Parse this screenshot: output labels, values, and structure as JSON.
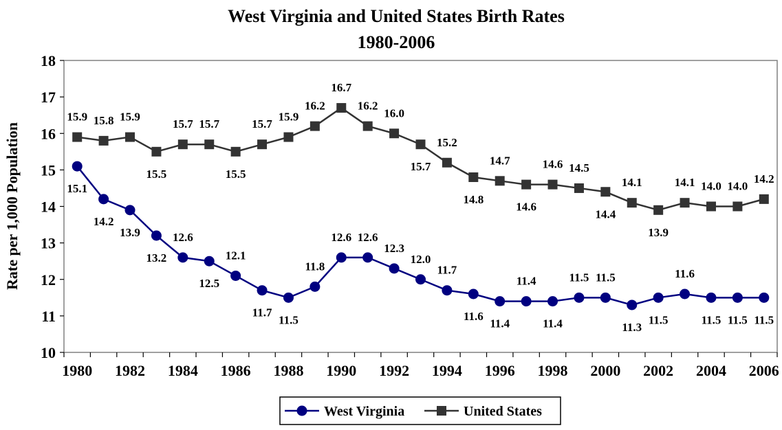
{
  "chart_data": {
    "type": "line",
    "title": "West Virginia and United States Birth Rates",
    "subtitle": "1980-2006",
    "xlabel": "",
    "ylabel": "Rate per 1,000 Population",
    "ylim": [
      10,
      18
    ],
    "yticks": [
      "10",
      "11",
      "12",
      "13",
      "14",
      "15",
      "16",
      "17",
      "18"
    ],
    "x": [
      1980,
      1981,
      1982,
      1983,
      1984,
      1985,
      1986,
      1987,
      1988,
      1989,
      1990,
      1991,
      1992,
      1993,
      1994,
      1995,
      1996,
      1997,
      1998,
      1999,
      2000,
      2001,
      2002,
      2003,
      2004,
      2005,
      2006
    ],
    "xtick_labels": [
      "1980",
      "1982",
      "1984",
      "1986",
      "1988",
      "1990",
      "1992",
      "1994",
      "1996",
      "1998",
      "2000",
      "2002",
      "2004",
      "2006"
    ],
    "grid": false,
    "legend_position": "bottom",
    "series": [
      {
        "name": "West Virginia",
        "color": "#000080",
        "marker": "circle",
        "values": [
          15.1,
          14.2,
          13.9,
          13.2,
          12.6,
          12.5,
          12.1,
          11.7,
          11.5,
          11.8,
          12.6,
          12.6,
          12.3,
          12.0,
          11.7,
          11.6,
          11.4,
          11.4,
          11.4,
          11.5,
          11.5,
          11.3,
          11.5,
          11.6,
          11.5,
          11.5,
          11.5
        ],
        "labels": [
          "15.1",
          "14.2",
          "13.9",
          "13.2",
          "12.6",
          "12.5",
          "12.1",
          "11.7",
          "11.5",
          "11.8",
          "12.6",
          "12.6",
          "12.3",
          "12.0",
          "11.7",
          "11.6",
          "11.4",
          "11.4",
          "11.4",
          "11.5",
          "11.5",
          "11.3",
          "11.5",
          "11.6",
          "11.5",
          "11.5",
          "11.5"
        ]
      },
      {
        "name": "United States",
        "color": "#333333",
        "marker": "square",
        "values": [
          15.9,
          15.8,
          15.9,
          15.5,
          15.7,
          15.7,
          15.5,
          15.7,
          15.9,
          16.2,
          16.7,
          16.2,
          16.0,
          15.7,
          15.2,
          14.8,
          14.7,
          14.6,
          14.6,
          14.5,
          14.4,
          14.1,
          13.9,
          14.1,
          14.0,
          14.0,
          14.2
        ],
        "labels": [
          "15.9",
          "15.8",
          "15.9",
          "15.5",
          "15.7",
          "15.7",
          "15.5",
          "15.7",
          "15.9",
          "16.2",
          "16.7",
          "16.2",
          "16.0",
          "15.7",
          "15.2",
          "14.8",
          "14.7",
          "14.6",
          "14.6",
          "14.5",
          "14.4",
          "14.1",
          "13.9",
          "14.1",
          "14.0",
          "14.0",
          "14.2"
        ]
      }
    ]
  }
}
